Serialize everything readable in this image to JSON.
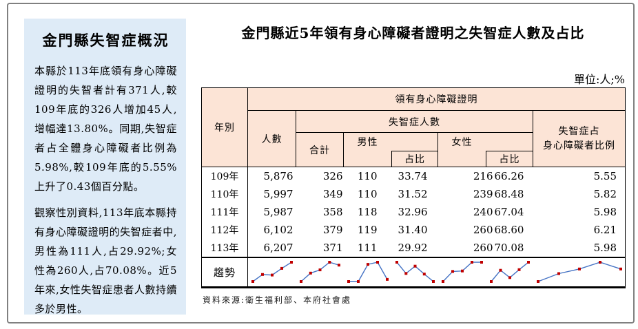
{
  "sidebar": {
    "title": "金門縣失智症概況",
    "paragraphs": [
      "本縣於113年底領有身心障礙證明的失智者計有371人,較109年底的326人增加45人,增幅達13.80%。同期,失智症者占全體身心障礙者比例為5.98%,較109年底的5.55%上升了0.43個百分點。",
      "觀察性別資料,113年底本縣持有身心障礙證明的失智症者中,男性為111人,占29.92%;女性為260人,占70.08%。近5年來,女性失智症患者人數持續多於男性。"
    ]
  },
  "main": {
    "title": "金門縣近5年領有身心障礙者證明之失智症人數及占比",
    "unit_label": "單位:人;%",
    "source": "資料來源:衛生福利部、本府社會處"
  },
  "table": {
    "header": {
      "year": "年別",
      "cert_group": "領有身心障礙證明",
      "count": "人數",
      "dementia_group": "失智症人數",
      "total": "合計",
      "male": "男性",
      "female": "女性",
      "pct": "占比",
      "ratio_line1": "失智症占",
      "ratio_line2": "身心障礙者比例",
      "trend": "趨勢"
    },
    "rows": [
      {
        "year": "109年",
        "count": "5,876",
        "total": "326",
        "male": "110",
        "male_pct": "33.74",
        "female": "216",
        "female_pct": "66.26",
        "ratio": "5.55"
      },
      {
        "year": "110年",
        "count": "5,997",
        "total": "349",
        "male": "110",
        "male_pct": "31.52",
        "female": "239",
        "female_pct": "68.48",
        "ratio": "5.82"
      },
      {
        "year": "111年",
        "count": "5,987",
        "total": "358",
        "male": "118",
        "male_pct": "32.96",
        "female": "240",
        "female_pct": "67.04",
        "ratio": "5.98"
      },
      {
        "year": "112年",
        "count": "6,102",
        "total": "379",
        "male": "119",
        "male_pct": "31.40",
        "female": "260",
        "female_pct": "68.60",
        "ratio": "6.21"
      },
      {
        "year": "113年",
        "count": "6,207",
        "total": "371",
        "male": "111",
        "male_pct": "29.92",
        "female": "260",
        "female_pct": "70.08",
        "ratio": "5.98"
      }
    ]
  },
  "chart_data": {
    "type": "line",
    "title": "趨勢 (sparklines per column, years 109-113)",
    "x": [
      "109年",
      "110年",
      "111年",
      "112年",
      "113年"
    ],
    "line_color": "#4472C4",
    "marker_color": "#C00000",
    "legend_position": "none",
    "grid": false,
    "sparklines": [
      {
        "id": "count",
        "label": "人數",
        "values": [
          5876,
          5997,
          5987,
          6102,
          6207
        ]
      },
      {
        "id": "total",
        "label": "合計",
        "values": [
          326,
          349,
          358,
          379,
          371
        ]
      },
      {
        "id": "male",
        "label": "男性",
        "values": [
          110,
          110,
          118,
          119,
          111
        ]
      },
      {
        "id": "male-pct",
        "label": "男性占比",
        "values": [
          33.74,
          31.52,
          32.96,
          31.4,
          29.92
        ]
      },
      {
        "id": "female",
        "label": "女性",
        "values": [
          216,
          239,
          240,
          260,
          260
        ]
      },
      {
        "id": "female-pct",
        "label": "女性占比",
        "values": [
          66.26,
          68.48,
          67.04,
          68.6,
          70.08
        ]
      },
      {
        "id": "ratio",
        "label": "失智症占身心障礙者比例",
        "values": [
          5.55,
          5.82,
          5.98,
          6.21,
          5.98
        ]
      }
    ]
  },
  "colors": {
    "sidebar_bg": "#DEEBF7",
    "header_bg": "#FCE4D6",
    "frame_border": "#808080",
    "sparkline_line": "#4472C4",
    "sparkline_marker": "#C00000"
  }
}
